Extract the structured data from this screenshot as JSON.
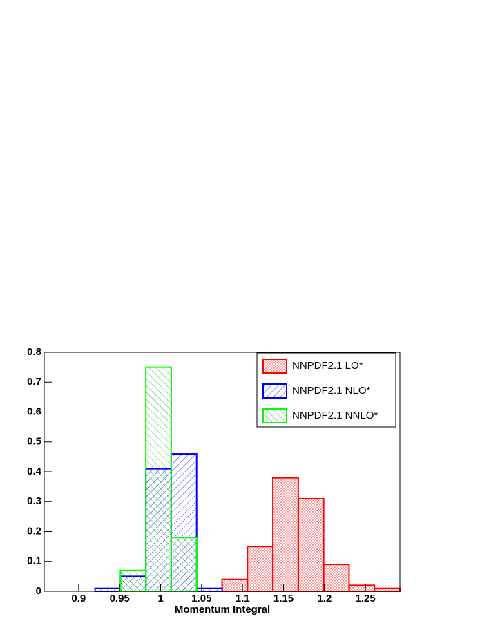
{
  "chart_data": {
    "type": "histogram",
    "x_label": "Momentum Integral",
    "bins": [
      0.858,
      0.889,
      0.92,
      0.951,
      0.982,
      1.013,
      1.044,
      1.075,
      1.106,
      1.137,
      1.168,
      1.199,
      1.23,
      1.261,
      1.292
    ],
    "series": [
      {
        "name": "NNPDF2.1 LO*",
        "color": "#ff0000",
        "values": [
          0,
          0,
          0,
          0,
          0,
          0,
          0,
          0.04,
          0.15,
          0.38,
          0.31,
          0.09,
          0.02,
          0.01
        ]
      },
      {
        "name": "NNPDF2.1 NLO*",
        "color": "#0000ff",
        "values": [
          0,
          0,
          0.01,
          0.05,
          0.41,
          0.46,
          0.01,
          0,
          0,
          0,
          0,
          0,
          0,
          0
        ]
      },
      {
        "name": "NNPDF2.1 NNLO*",
        "color": "#00ff00",
        "values": [
          0,
          0,
          0,
          0.07,
          0.75,
          0.18,
          0,
          0,
          0,
          0,
          0,
          0,
          0,
          0
        ]
      }
    ],
    "xlim": [
      0.858,
      1.292
    ],
    "ylim": [
      0,
      0.8
    ],
    "xticks": [
      0.9,
      0.95,
      1,
      1.05,
      1.1,
      1.15,
      1.2,
      1.25
    ],
    "yticks": [
      0,
      0.1,
      0.2,
      0.3,
      0.4,
      0.5,
      0.6,
      0.7,
      0.8
    ],
    "legend": "top-right"
  }
}
